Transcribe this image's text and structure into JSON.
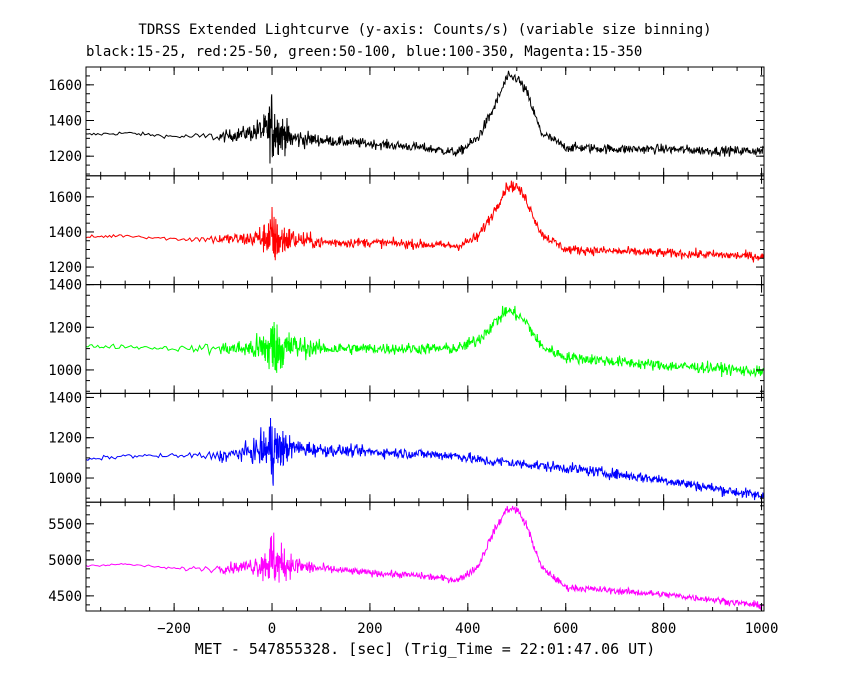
{
  "title": "TDRSS Extended Lightcurve (y-axis: Counts/s) (variable size binning)",
  "subtitle": "black:15-25, red:25-50, green:50-100, blue:100-350, Magenta:15-350",
  "xlabel": "MET - 547855328. [sec] (Trig_Time = 22:01:47.06 UT)",
  "chart_data": {
    "type": "line",
    "title": "TDRSS Extended Lightcurve (y-axis: Counts/s) (variable size binning)",
    "subtitle": "black:15-25, red:25-50, green:50-100, blue:100-350, Magenta:15-350",
    "xlabel": "MET - 547855328. [sec] (Trig_Time = 22:01:47.06 UT)",
    "ylabel": "Counts/s",
    "xlim": [
      -380,
      1005
    ],
    "xticks": [
      -200,
      0,
      200,
      400,
      600,
      800,
      1000
    ],
    "xticklabels": [
      "−200",
      "0",
      "200",
      "400",
      "600",
      "800",
      "1000"
    ],
    "panels": [
      {
        "name": "black:15-25",
        "color": "#000000",
        "ylim": [
          1090,
          1700
        ],
        "yticks": [
          1200,
          1400,
          1600
        ],
        "yticklabels": [
          "1200",
          "1400",
          "1600"
        ],
        "x": [
          -380,
          -300,
          -200,
          -100,
          -50,
          -10,
          0,
          10,
          40,
          100,
          200,
          300,
          380,
          420,
          450,
          480,
          500,
          520,
          550,
          600,
          700,
          800,
          900,
          1000
        ],
        "y": [
          1320,
          1330,
          1310,
          1310,
          1330,
          1350,
          1370,
          1340,
          1300,
          1290,
          1270,
          1250,
          1220,
          1300,
          1450,
          1640,
          1640,
          1560,
          1330,
          1250,
          1240,
          1240,
          1230,
          1230
        ],
        "noise": [
          10,
          10,
          10,
          30,
          40,
          90,
          200,
          120,
          60,
          30,
          25,
          25,
          25,
          30,
          30,
          30,
          30,
          30,
          25,
          25,
          25,
          25,
          25,
          25
        ]
      },
      {
        "name": "red:25-50",
        "color": "#ff0000",
        "ylim": [
          1100,
          1720
        ],
        "yticks": [
          1200,
          1400,
          1600
        ],
        "yticklabels": [
          "1200",
          "1400",
          "1600"
        ],
        "x": [
          -380,
          -300,
          -200,
          -100,
          -50,
          -10,
          0,
          10,
          40,
          100,
          200,
          300,
          380,
          420,
          450,
          480,
          500,
          520,
          550,
          600,
          700,
          800,
          900,
          1000
        ],
        "y": [
          1370,
          1380,
          1360,
          1360,
          1360,
          1370,
          1360,
          1350,
          1360,
          1340,
          1340,
          1330,
          1320,
          1370,
          1500,
          1660,
          1660,
          1580,
          1390,
          1300,
          1290,
          1280,
          1270,
          1260
        ],
        "noise": [
          10,
          10,
          10,
          30,
          40,
          90,
          180,
          110,
          60,
          30,
          25,
          25,
          25,
          30,
          30,
          30,
          30,
          30,
          25,
          25,
          25,
          25,
          25,
          25
        ]
      },
      {
        "name": "green:50-100",
        "color": "#00ff00",
        "ylim": [
          890,
          1400
        ],
        "yticks": [
          1000,
          1200,
          1400
        ],
        "yticklabels": [
          "1000",
          "1200",
          "1400"
        ],
        "x": [
          -380,
          -300,
          -200,
          -100,
          -50,
          -10,
          0,
          10,
          40,
          100,
          200,
          300,
          380,
          420,
          450,
          480,
          500,
          520,
          550,
          600,
          700,
          800,
          900,
          1000
        ],
        "y": [
          1110,
          1110,
          1100,
          1100,
          1100,
          1100,
          1110,
          1100,
          1110,
          1100,
          1100,
          1100,
          1100,
          1140,
          1210,
          1280,
          1260,
          1220,
          1110,
          1060,
          1040,
          1020,
          1010,
          990
        ],
        "noise": [
          10,
          10,
          10,
          30,
          40,
          90,
          170,
          110,
          60,
          30,
          25,
          25,
          25,
          30,
          30,
          30,
          30,
          30,
          25,
          25,
          25,
          25,
          25,
          25
        ]
      },
      {
        "name": "blue:100-350",
        "color": "#0000ff",
        "ylim": [
          880,
          1420
        ],
        "yticks": [
          1000,
          1200,
          1400
        ],
        "yticklabels": [
          "1000",
          "1200",
          "1400"
        ],
        "x": [
          -380,
          -300,
          -200,
          -100,
          -50,
          -10,
          0,
          10,
          40,
          100,
          200,
          300,
          380,
          420,
          450,
          480,
          500,
          520,
          550,
          600,
          700,
          800,
          900,
          1000
        ],
        "y": [
          1090,
          1110,
          1110,
          1110,
          1130,
          1140,
          1150,
          1140,
          1150,
          1140,
          1130,
          1120,
          1110,
          1090,
          1080,
          1080,
          1070,
          1070,
          1060,
          1050,
          1020,
          990,
          950,
          910
        ],
        "noise": [
          10,
          10,
          10,
          30,
          40,
          90,
          180,
          110,
          50,
          30,
          25,
          25,
          25,
          25,
          25,
          25,
          25,
          25,
          25,
          25,
          25,
          25,
          25,
          25
        ]
      },
      {
        "name": "Magenta:15-350",
        "color": "#ff00ff",
        "ylim": [
          4290,
          5800
        ],
        "yticks": [
          4500,
          5000,
          5500
        ],
        "yticklabels": [
          "4500",
          "5000",
          "5500"
        ],
        "x": [
          -380,
          -300,
          -200,
          -100,
          -50,
          -10,
          0,
          10,
          40,
          100,
          200,
          300,
          380,
          420,
          450,
          480,
          500,
          520,
          550,
          600,
          700,
          800,
          900,
          1000
        ],
        "y": [
          4920,
          4940,
          4880,
          4880,
          4910,
          4950,
          4990,
          4950,
          4920,
          4880,
          4820,
          4780,
          4720,
          4900,
          5350,
          5710,
          5700,
          5480,
          4900,
          4620,
          4570,
          4520,
          4450,
          4360
        ],
        "noise": [
          15,
          15,
          15,
          60,
          90,
          220,
          450,
          280,
          150,
          60,
          45,
          45,
          45,
          55,
          55,
          55,
          55,
          55,
          45,
          45,
          45,
          45,
          45,
          45
        ]
      }
    ]
  }
}
